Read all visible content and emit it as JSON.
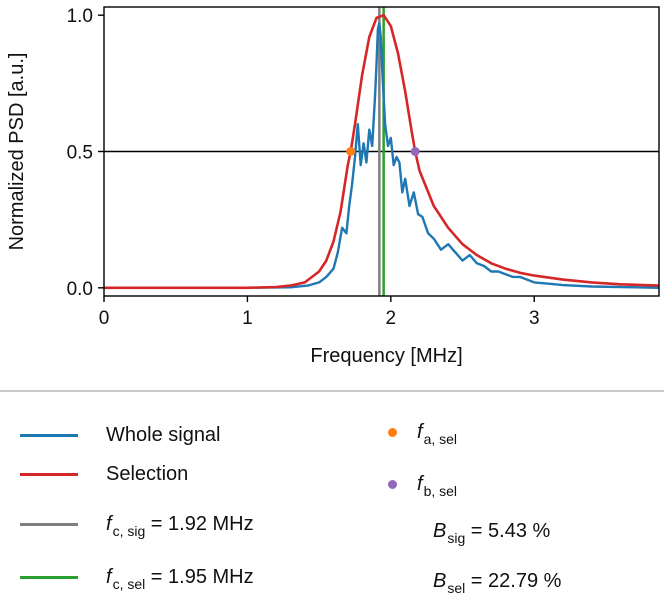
{
  "chart_data": {
    "type": "line",
    "xlabel": "Frequency [MHz]",
    "ylabel": "Normalized PSD [a.u.]",
    "xlim": [
      0,
      3.87
    ],
    "ylim": [
      -0.03,
      1.03
    ],
    "xticks": [
      "0",
      "1",
      "2",
      "3"
    ],
    "yticks": [
      "0.0",
      "0.5",
      "1.0"
    ],
    "hline": 0.5,
    "series": [
      {
        "name": "Whole signal",
        "color": "#1f77b4",
        "x": [
          0,
          1.0,
          1.3,
          1.42,
          1.5,
          1.55,
          1.6,
          1.63,
          1.66,
          1.69,
          1.71,
          1.73,
          1.75,
          1.77,
          1.79,
          1.81,
          1.83,
          1.85,
          1.87,
          1.89,
          1.9,
          1.91,
          1.92,
          1.93,
          1.94,
          1.96,
          1.98,
          2.0,
          2.02,
          2.04,
          2.06,
          2.08,
          2.1,
          2.13,
          2.16,
          2.19,
          2.22,
          2.26,
          2.3,
          2.35,
          2.4,
          2.45,
          2.5,
          2.55,
          2.6,
          2.65,
          2.7,
          2.75,
          2.8,
          2.85,
          2.9,
          2.95,
          3.0,
          3.1,
          3.2,
          3.4,
          3.87
        ],
        "y": [
          0,
          0,
          0.002,
          0.008,
          0.02,
          0.04,
          0.07,
          0.13,
          0.22,
          0.2,
          0.3,
          0.38,
          0.48,
          0.6,
          0.45,
          0.53,
          0.46,
          0.58,
          0.52,
          0.7,
          0.82,
          0.95,
          0.97,
          0.92,
          0.8,
          0.6,
          0.52,
          0.55,
          0.45,
          0.48,
          0.46,
          0.35,
          0.4,
          0.3,
          0.35,
          0.27,
          0.26,
          0.2,
          0.18,
          0.14,
          0.16,
          0.13,
          0.1,
          0.12,
          0.09,
          0.08,
          0.06,
          0.06,
          0.05,
          0.04,
          0.04,
          0.03,
          0.02,
          0.015,
          0.01,
          0.005,
          0
        ]
      },
      {
        "name": "Selection",
        "color": "#d62728",
        "x": [
          0,
          1.0,
          1.2,
          1.3,
          1.4,
          1.5,
          1.55,
          1.6,
          1.65,
          1.7,
          1.72,
          1.75,
          1.8,
          1.85,
          1.9,
          1.95,
          2.0,
          2.05,
          2.1,
          2.15,
          2.17,
          2.2,
          2.3,
          2.4,
          2.5,
          2.6,
          2.7,
          2.8,
          2.9,
          3.0,
          3.2,
          3.4,
          3.6,
          3.87
        ],
        "y": [
          0,
          0,
          0.003,
          0.008,
          0.02,
          0.06,
          0.1,
          0.17,
          0.28,
          0.45,
          0.5,
          0.6,
          0.78,
          0.92,
          0.99,
          1.0,
          0.96,
          0.86,
          0.72,
          0.56,
          0.5,
          0.43,
          0.3,
          0.22,
          0.16,
          0.12,
          0.09,
          0.07,
          0.055,
          0.045,
          0.03,
          0.02,
          0.013,
          0.008
        ]
      }
    ],
    "vlines": [
      {
        "name": "fc_sig",
        "x": 1.92,
        "color": "#7f7f7f"
      },
      {
        "name": "fc_sel",
        "x": 1.95,
        "color": "#2ca02c"
      }
    ],
    "points": [
      {
        "name": "fa_sel",
        "x": 1.72,
        "y": 0.5,
        "color": "#ff7f0e"
      },
      {
        "name": "fb_sel",
        "x": 2.17,
        "y": 0.5,
        "color": "#9467bd"
      }
    ]
  },
  "legend": {
    "whole_signal": {
      "label": "Whole signal",
      "color": "#1f77b4"
    },
    "selection": {
      "label": "Selection",
      "color": "#d62728"
    },
    "fc_sig": {
      "sym": "f",
      "sub": "c, sig",
      "text": " = 1.92 MHz",
      "color": "#7f7f7f"
    },
    "fc_sel": {
      "sym": "f",
      "sub": "c, sel",
      "text": " = 1.95 MHz",
      "color": "#2ca02c"
    },
    "fa_sel": {
      "sym": "f",
      "sub": "a, sel",
      "color": "#ff7f0e"
    },
    "fb_sel": {
      "sym": "f",
      "sub": "b, sel",
      "color": "#9467bd"
    },
    "b_sig": {
      "sym": "B",
      "sub": "sig",
      "text": " = 5.43 %"
    },
    "b_sel": {
      "sym": "B",
      "sub": "sel",
      "text": " = 22.79 %"
    }
  }
}
